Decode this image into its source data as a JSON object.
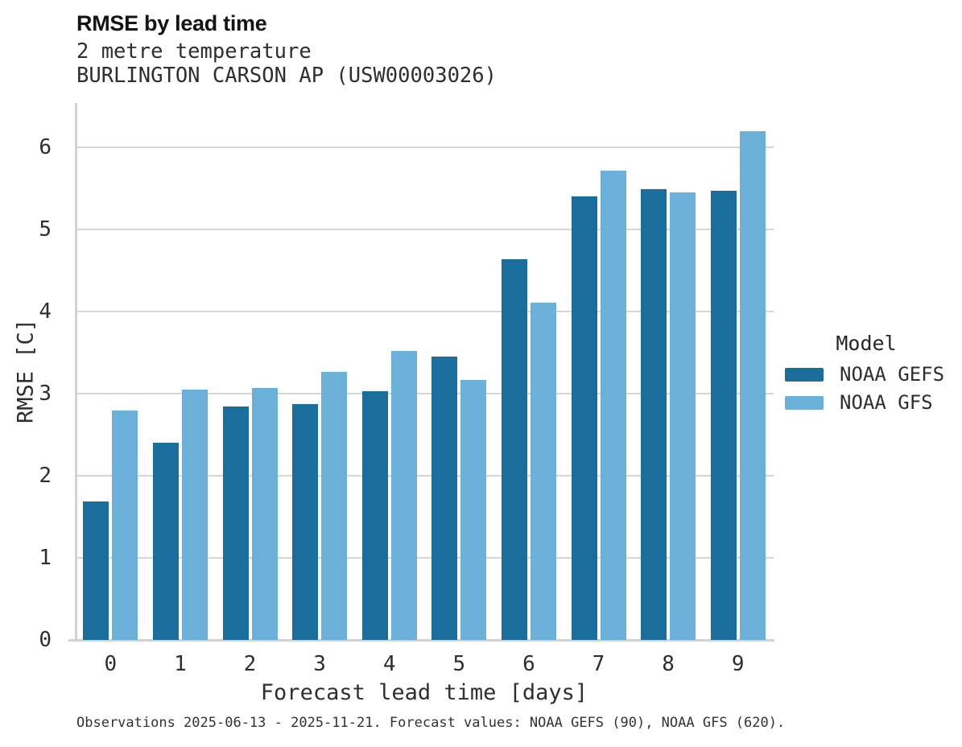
{
  "chart_data": {
    "type": "bar",
    "title": "RMSE by lead time",
    "subtitle": [
      "2 metre temperature",
      "BURLINGTON CARSON AP (USW00003026)"
    ],
    "categories": [
      "0",
      "1",
      "2",
      "3",
      "4",
      "5",
      "6",
      "7",
      "8",
      "9"
    ],
    "series": [
      {
        "name": "NOAA GEFS",
        "color": "#1a6e9c",
        "values": [
          1.69,
          2.4,
          2.84,
          2.87,
          3.03,
          3.45,
          4.64,
          5.4,
          5.49,
          5.47
        ]
      },
      {
        "name": "NOAA GFS",
        "color": "#6bb0d8",
        "values": [
          2.79,
          3.05,
          3.07,
          3.27,
          3.52,
          3.17,
          4.11,
          5.72,
          5.45,
          6.2
        ]
      }
    ],
    "xlabel": "Forecast lead time [days]",
    "ylabel": "RMSE [C]",
    "ylim": [
      0,
      6.54
    ],
    "yticks": [
      0,
      1,
      2,
      3,
      4,
      5,
      6
    ],
    "grid": "horizontal",
    "legend_title": "Model",
    "legend_position": "right",
    "caption": "Observations 2025-06-13 - 2025-11-21. Forecast values: NOAA GEFS (90), NOAA GFS (620)."
  },
  "colors": {
    "grid": "#d5d5d5",
    "axis": "#d2d2d2",
    "text": "#2e2e2e",
    "title": "#141414"
  }
}
